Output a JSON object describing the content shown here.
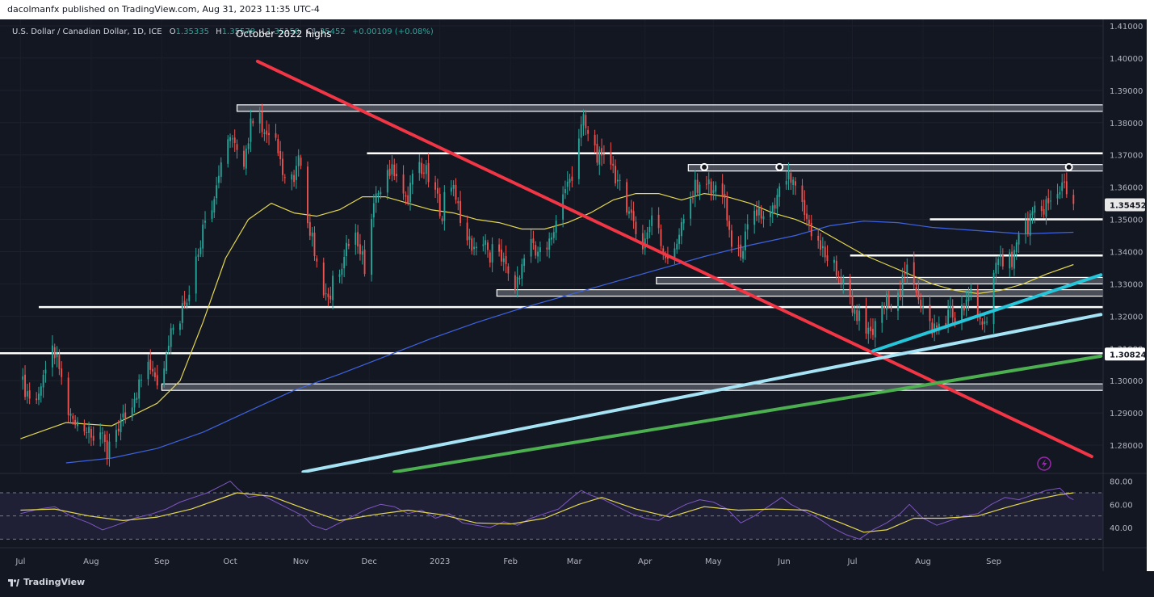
{
  "header": {
    "published_by": "dacolmanfx published on TradingView.com, Aug 31, 2023 11:35 UTC-4"
  },
  "brand": {
    "name": "TradingView"
  },
  "colors": {
    "background": "#131722",
    "bull": "#26a69a",
    "bear": "#ef5350",
    "ma_short": "#e5d84f",
    "ma_long": "#3f63e0",
    "downtrend": "#f23645",
    "uptrend_1": "#26c6da",
    "uptrend_2": "#a5e3f5",
    "uptrend_3": "#4caf50",
    "rsi": "#7e57c2",
    "text": "#d1d4dc"
  },
  "icons": [
    "flash-icon",
    "tradingview-logo-icon"
  ],
  "chart_data": {
    "type": "candlestick",
    "symbol": "U.S. Dollar / Canadian Dollar, 1D, ICE",
    "ohlc_labels": [
      "O",
      "H",
      "L",
      "C"
    ],
    "ohlc_values": [
      "1.35335",
      "1.35578",
      "1.35150",
      "1.35452"
    ],
    "change": "+0.00109 (+0.08%)",
    "last_price": 1.35452,
    "last_price_label": "1.35452",
    "level_label": 1.30824,
    "level_label_text": "1.30824",
    "annotation": "October 2022 highs",
    "ylim": [
      1.2715,
      1.412
    ],
    "y_ticks": [
      "1.41000",
      "1.40000",
      "1.39000",
      "1.38000",
      "1.37000",
      "1.36000",
      "1.35000",
      "1.34000",
      "1.33000",
      "1.32000",
      "1.31000",
      "1.30000",
      "1.29000",
      "1.28000"
    ],
    "x_ticks": [
      {
        "label": "Jul",
        "day": 0
      },
      {
        "label": "Aug",
        "day": 31
      },
      {
        "label": "Sep",
        "day": 62
      },
      {
        "label": "Oct",
        "day": 92
      },
      {
        "label": "Nov",
        "day": 123
      },
      {
        "label": "Dec",
        "day": 153
      },
      {
        "label": "2023",
        "day": 184
      },
      {
        "label": "Feb",
        "day": 215
      },
      {
        "label": "Mar",
        "day": 243
      },
      {
        "label": "Apr",
        "day": 274
      },
      {
        "label": "May",
        "day": 304
      },
      {
        "label": "Jun",
        "day": 335
      },
      {
        "label": "Jul",
        "day": 365
      },
      {
        "label": "Aug",
        "day": 396
      },
      {
        "label": "Sep",
        "day": 427
      }
    ],
    "x_domain_days": [
      -9,
      475
    ],
    "close_path": [
      [
        0,
        1.3
      ],
      [
        5,
        1.294
      ],
      [
        10,
        1.299
      ],
      [
        14,
        1.309
      ],
      [
        17,
        1.304
      ],
      [
        21,
        1.289
      ],
      [
        27,
        1.288
      ],
      [
        31,
        1.281
      ],
      [
        34,
        1.286
      ],
      [
        38,
        1.276
      ],
      [
        40,
        1.283
      ],
      [
        45,
        1.288
      ],
      [
        49,
        1.294
      ],
      [
        53,
        1.3
      ],
      [
        56,
        1.306
      ],
      [
        59,
        1.303
      ],
      [
        61,
        1.298
      ],
      [
        64,
        1.311
      ],
      [
        67,
        1.318
      ],
      [
        69,
        1.313
      ],
      [
        71,
        1.324
      ],
      [
        75,
        1.33
      ],
      [
        78,
        1.341
      ],
      [
        81,
        1.35
      ],
      [
        85,
        1.357
      ],
      [
        88,
        1.368
      ],
      [
        91,
        1.377
      ],
      [
        94,
        1.372
      ],
      [
        97,
        1.366
      ],
      [
        100,
        1.375
      ],
      [
        103,
        1.386
      ],
      [
        106,
        1.378
      ],
      [
        110,
        1.372
      ],
      [
        112,
        1.378
      ],
      [
        115,
        1.364
      ],
      [
        119,
        1.361
      ],
      [
        123,
        1.369
      ],
      [
        126,
        1.35
      ],
      [
        129,
        1.34
      ],
      [
        132,
        1.332
      ],
      [
        135,
        1.324
      ],
      [
        138,
        1.334
      ],
      [
        141,
        1.333
      ],
      [
        145,
        1.348
      ],
      [
        148,
        1.341
      ],
      [
        151,
        1.336
      ],
      [
        154,
        1.35
      ],
      [
        157,
        1.358
      ],
      [
        160,
        1.364
      ],
      [
        163,
        1.367
      ],
      [
        166,
        1.362
      ],
      [
        169,
        1.356
      ],
      [
        172,
        1.362
      ],
      [
        175,
        1.367
      ],
      [
        178,
        1.364
      ],
      [
        182,
        1.358
      ],
      [
        185,
        1.352
      ],
      [
        188,
        1.364
      ],
      [
        191,
        1.358
      ],
      [
        194,
        1.348
      ],
      [
        197,
        1.343
      ],
      [
        200,
        1.341
      ],
      [
        203,
        1.343
      ],
      [
        206,
        1.338
      ],
      [
        209,
        1.344
      ],
      [
        212,
        1.336
      ],
      [
        215,
        1.331
      ],
      [
        218,
        1.33
      ],
      [
        221,
        1.338
      ],
      [
        224,
        1.344
      ],
      [
        227,
        1.34
      ],
      [
        230,
        1.338
      ],
      [
        233,
        1.345
      ],
      [
        236,
        1.351
      ],
      [
        239,
        1.36
      ],
      [
        242,
        1.362
      ],
      [
        245,
        1.376
      ],
      [
        247,
        1.38
      ],
      [
        249,
        1.376
      ],
      [
        252,
        1.372
      ],
      [
        255,
        1.367
      ],
      [
        258,
        1.37
      ],
      [
        261,
        1.364
      ],
      [
        264,
        1.357
      ],
      [
        267,
        1.354
      ],
      [
        270,
        1.346
      ],
      [
        273,
        1.342
      ],
      [
        276,
        1.348
      ],
      [
        279,
        1.352
      ],
      [
        282,
        1.34
      ],
      [
        285,
        1.338
      ],
      [
        288,
        1.344
      ],
      [
        291,
        1.35
      ],
      [
        294,
        1.356
      ],
      [
        297,
        1.361
      ],
      [
        300,
        1.364
      ],
      [
        303,
        1.358
      ],
      [
        306,
        1.36
      ],
      [
        309,
        1.354
      ],
      [
        312,
        1.342
      ],
      [
        315,
        1.339
      ],
      [
        318,
        1.344
      ],
      [
        321,
        1.35
      ],
      [
        324,
        1.353
      ],
      [
        327,
        1.348
      ],
      [
        330,
        1.352
      ],
      [
        333,
        1.358
      ],
      [
        336,
        1.363
      ],
      [
        339,
        1.36
      ],
      [
        342,
        1.355
      ],
      [
        345,
        1.35
      ],
      [
        348,
        1.345
      ],
      [
        351,
        1.341
      ],
      [
        354,
        1.338
      ],
      [
        357,
        1.336
      ],
      [
        360,
        1.331
      ],
      [
        363,
        1.326
      ],
      [
        366,
        1.322
      ],
      [
        369,
        1.318
      ],
      [
        372,
        1.314
      ],
      [
        375,
        1.316
      ],
      [
        378,
        1.321
      ],
      [
        381,
        1.326
      ],
      [
        384,
        1.323
      ],
      [
        387,
        1.33
      ],
      [
        390,
        1.336
      ],
      [
        393,
        1.329
      ],
      [
        396,
        1.322
      ],
      [
        399,
        1.317
      ],
      [
        402,
        1.316
      ],
      [
        405,
        1.319
      ],
      [
        408,
        1.321
      ],
      [
        411,
        1.318
      ],
      [
        414,
        1.323
      ],
      [
        417,
        1.327
      ],
      [
        420,
        1.321
      ],
      [
        423,
        1.317
      ],
      [
        426,
        1.329
      ],
      [
        429,
        1.336
      ],
      [
        432,
        1.339
      ],
      [
        435,
        1.338
      ],
      [
        438,
        1.344
      ],
      [
        441,
        1.347
      ],
      [
        444,
        1.351
      ],
      [
        447,
        1.352
      ],
      [
        450,
        1.355
      ],
      [
        453,
        1.354
      ],
      [
        456,
        1.36
      ],
      [
        458,
        1.362
      ],
      [
        460,
        1.358
      ],
      [
        462,
        1.355
      ]
    ],
    "ma_short": [
      [
        0,
        1.282
      ],
      [
        20,
        1.287
      ],
      [
        40,
        1.286
      ],
      [
        60,
        1.293
      ],
      [
        70,
        1.3
      ],
      [
        80,
        1.318
      ],
      [
        90,
        1.338
      ],
      [
        100,
        1.35
      ],
      [
        110,
        1.355
      ],
      [
        120,
        1.352
      ],
      [
        130,
        1.351
      ],
      [
        140,
        1.353
      ],
      [
        150,
        1.357
      ],
      [
        160,
        1.357
      ],
      [
        170,
        1.355
      ],
      [
        180,
        1.353
      ],
      [
        190,
        1.352
      ],
      [
        200,
        1.35
      ],
      [
        210,
        1.349
      ],
      [
        220,
        1.347
      ],
      [
        230,
        1.347
      ],
      [
        240,
        1.349
      ],
      [
        250,
        1.352
      ],
      [
        260,
        1.356
      ],
      [
        270,
        1.358
      ],
      [
        280,
        1.358
      ],
      [
        290,
        1.356
      ],
      [
        300,
        1.358
      ],
      [
        310,
        1.357
      ],
      [
        320,
        1.355
      ],
      [
        330,
        1.352
      ],
      [
        340,
        1.35
      ],
      [
        350,
        1.347
      ],
      [
        360,
        1.343
      ],
      [
        370,
        1.339
      ],
      [
        380,
        1.336
      ],
      [
        390,
        1.333
      ],
      [
        400,
        1.33
      ],
      [
        410,
        1.328
      ],
      [
        420,
        1.327
      ],
      [
        430,
        1.328
      ],
      [
        440,
        1.33
      ],
      [
        450,
        1.333
      ],
      [
        462,
        1.336
      ]
    ],
    "ma_long": [
      [
        20,
        1.2745
      ],
      [
        40,
        1.276
      ],
      [
        60,
        1.279
      ],
      [
        80,
        1.284
      ],
      [
        100,
        1.2905
      ],
      [
        120,
        1.297
      ],
      [
        140,
        1.302
      ],
      [
        160,
        1.3075
      ],
      [
        180,
        1.313
      ],
      [
        200,
        1.318
      ],
      [
        220,
        1.3225
      ],
      [
        240,
        1.3265
      ],
      [
        260,
        1.3305
      ],
      [
        280,
        1.3345
      ],
      [
        300,
        1.3385
      ],
      [
        320,
        1.342
      ],
      [
        340,
        1.345
      ],
      [
        355,
        1.348
      ],
      [
        370,
        1.3495
      ],
      [
        385,
        1.349
      ],
      [
        400,
        1.3475
      ],
      [
        420,
        1.3465
      ],
      [
        440,
        1.3455
      ],
      [
        462,
        1.346
      ]
    ],
    "horizontal_levels": [
      {
        "y": 1.3845,
        "x_from": 95,
        "x_to": 475,
        "zone": true
      },
      {
        "y": 1.3705,
        "x_from": 152,
        "x_to": 475,
        "zone": false
      },
      {
        "y": 1.366,
        "x_from": 293,
        "x_to": 475,
        "zone": true
      },
      {
        "y": 1.35,
        "x_from": 399,
        "x_to": 475,
        "zone": false
      },
      {
        "y": 1.3388,
        "x_from": 364,
        "x_to": 475,
        "zone": false
      },
      {
        "y": 1.331,
        "x_from": 279,
        "x_to": 475,
        "zone": true
      },
      {
        "y": 1.3272,
        "x_from": 209,
        "x_to": 475,
        "zone": true
      },
      {
        "y": 1.3228,
        "x_from": 8,
        "x_to": 475,
        "zone": false
      },
      {
        "y": 1.3085,
        "x_from": -9,
        "x_to": 475,
        "zone": false
      },
      {
        "y": 1.298,
        "x_from": 62,
        "x_to": 475,
        "zone": true
      }
    ],
    "trendlines": [
      {
        "name": "downtrend",
        "from": [
          104,
          1.399
        ],
        "to": [
          470,
          1.2765
        ]
      },
      {
        "name": "uptrend_1",
        "from": [
          374,
          1.3092
        ],
        "to": [
          474,
          1.3328
        ]
      },
      {
        "name": "uptrend_2",
        "from": [
          124,
          1.2717
        ],
        "to": [
          474,
          1.3205
        ]
      },
      {
        "name": "uptrend_3",
        "from": [
          164,
          1.2717
        ],
        "to": [
          474,
          1.3076
        ]
      }
    ],
    "markers": [
      [
        300,
        1.3662
      ],
      [
        333,
        1.3662
      ],
      [
        460,
        1.3662
      ]
    ],
    "rsi": {
      "ylim": [
        24,
        86
      ],
      "y_ticks": [
        "80.00",
        "60.00",
        "40.00"
      ],
      "band": [
        30,
        70
      ],
      "line": [
        [
          0,
          52
        ],
        [
          8,
          56
        ],
        [
          15,
          58
        ],
        [
          22,
          50
        ],
        [
          30,
          44
        ],
        [
          36,
          38
        ],
        [
          42,
          42
        ],
        [
          50,
          48
        ],
        [
          58,
          52
        ],
        [
          64,
          56
        ],
        [
          70,
          62
        ],
        [
          76,
          66
        ],
        [
          82,
          70
        ],
        [
          88,
          76
        ],
        [
          92,
          80
        ],
        [
          95,
          74
        ],
        [
          100,
          66
        ],
        [
          106,
          68
        ],
        [
          112,
          62
        ],
        [
          118,
          56
        ],
        [
          124,
          50
        ],
        [
          128,
          42
        ],
        [
          134,
          38
        ],
        [
          140,
          44
        ],
        [
          146,
          50
        ],
        [
          152,
          56
        ],
        [
          158,
          60
        ],
        [
          164,
          58
        ],
        [
          170,
          52
        ],
        [
          176,
          55
        ],
        [
          182,
          48
        ],
        [
          188,
          52
        ],
        [
          194,
          44
        ],
        [
          200,
          42
        ],
        [
          206,
          40
        ],
        [
          212,
          45
        ],
        [
          218,
          42
        ],
        [
          224,
          48
        ],
        [
          230,
          52
        ],
        [
          236,
          56
        ],
        [
          242,
          66
        ],
        [
          246,
          72
        ],
        [
          250,
          68
        ],
        [
          256,
          64
        ],
        [
          262,
          58
        ],
        [
          268,
          52
        ],
        [
          274,
          48
        ],
        [
          280,
          46
        ],
        [
          286,
          54
        ],
        [
          292,
          60
        ],
        [
          298,
          64
        ],
        [
          304,
          62
        ],
        [
          310,
          56
        ],
        [
          316,
          44
        ],
        [
          322,
          50
        ],
        [
          328,
          58
        ],
        [
          334,
          66
        ],
        [
          338,
          60
        ],
        [
          344,
          54
        ],
        [
          350,
          48
        ],
        [
          356,
          40
        ],
        [
          362,
          34
        ],
        [
          368,
          30
        ],
        [
          374,
          38
        ],
        [
          380,
          44
        ],
        [
          386,
          52
        ],
        [
          390,
          60
        ],
        [
          396,
          48
        ],
        [
          402,
          42
        ],
        [
          408,
          46
        ],
        [
          414,
          50
        ],
        [
          420,
          52
        ],
        [
          426,
          60
        ],
        [
          432,
          66
        ],
        [
          438,
          64
        ],
        [
          444,
          68
        ],
        [
          450,
          72
        ],
        [
          456,
          74
        ],
        [
          460,
          66
        ],
        [
          462,
          64
        ]
      ],
      "signal": [
        [
          0,
          55
        ],
        [
          15,
          56
        ],
        [
          30,
          50
        ],
        [
          45,
          46
        ],
        [
          60,
          49
        ],
        [
          75,
          56
        ],
        [
          85,
          63
        ],
        [
          95,
          70
        ],
        [
          110,
          67
        ],
        [
          125,
          56
        ],
        [
          140,
          46
        ],
        [
          155,
          51
        ],
        [
          170,
          55
        ],
        [
          185,
          51
        ],
        [
          200,
          44
        ],
        [
          215,
          43
        ],
        [
          230,
          48
        ],
        [
          245,
          60
        ],
        [
          255,
          66
        ],
        [
          270,
          56
        ],
        [
          285,
          49
        ],
        [
          300,
          58
        ],
        [
          315,
          55
        ],
        [
          330,
          56
        ],
        [
          345,
          55
        ],
        [
          360,
          44
        ],
        [
          370,
          36
        ],
        [
          380,
          38
        ],
        [
          392,
          48
        ],
        [
          405,
          48
        ],
        [
          420,
          50
        ],
        [
          432,
          57
        ],
        [
          445,
          64
        ],
        [
          455,
          68
        ],
        [
          462,
          70
        ]
      ]
    }
  }
}
